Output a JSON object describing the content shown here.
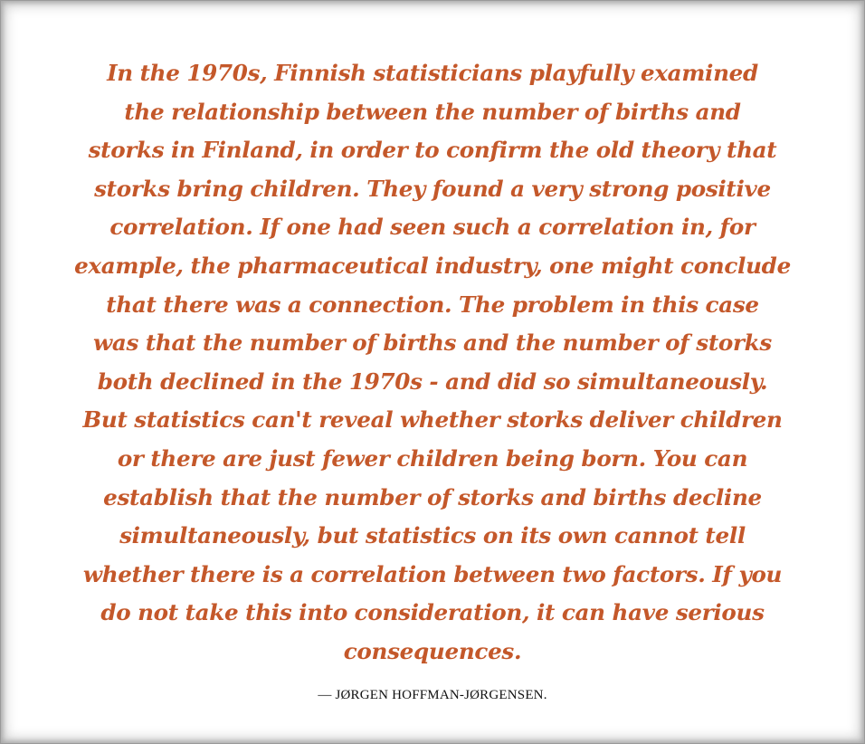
{
  "colors": {
    "quote_text": "#c4582a",
    "attribution_text": "#111111",
    "background": "#ffffff",
    "border_shadow": "#a8a8a8"
  },
  "quote": {
    "lines": [
      "In the 1970s, Finnish statisticians playfully examined",
      "the relationship between the number of births and",
      "storks in Finland, in order to confirm the old theory that",
      "storks bring children. They found a very strong positive",
      "correlation. If one had seen such a correlation in, for",
      "example, the pharmaceutical industry, one might conclude",
      "that there was a connection. The problem in this case",
      "was that the number of births and the number of storks",
      "both declined in the 1970s - and did so simultaneously.",
      "But statistics can't reveal whether storks deliver children",
      "or there are just fewer children being born. You can",
      "establish that the number of storks and births decline",
      "simultaneously, but statistics on its own cannot tell",
      "whether there is a correlation between two factors. If you",
      "do not take this into consideration, it can have serious",
      "consequences."
    ],
    "attribution": "— JØRGEN HOFFMAN-JØRGENSEN."
  }
}
